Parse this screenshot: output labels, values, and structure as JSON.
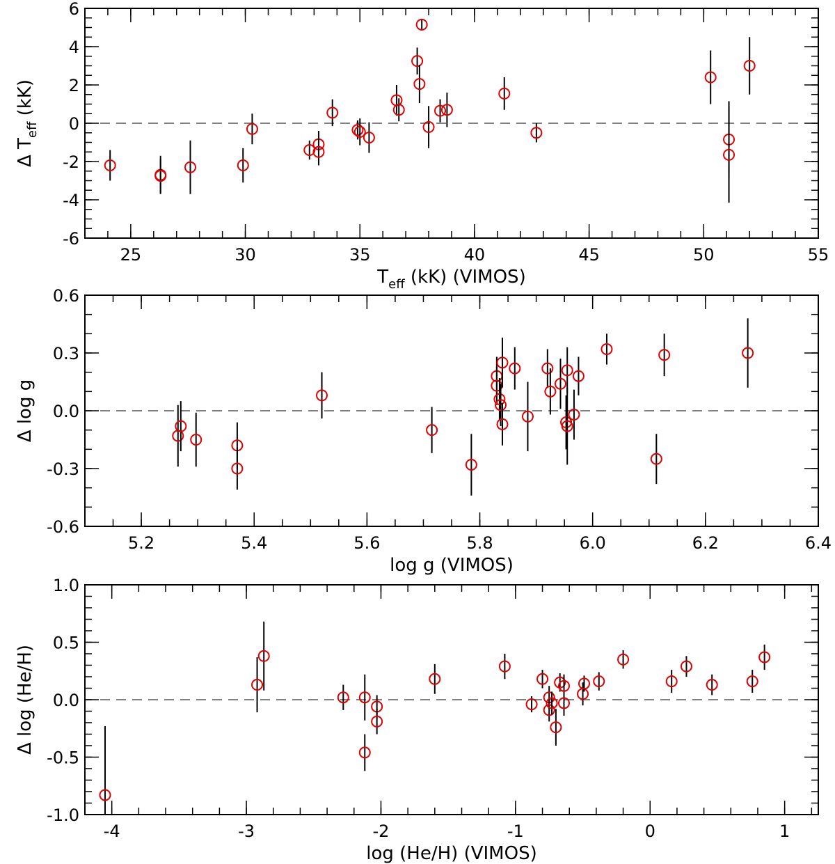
{
  "chart_data": [
    {
      "type": "scatter",
      "name": "teff",
      "xlabel": {
        "main": "T",
        "sub": "eff",
        "rest": " (kK) (VIMOS)"
      },
      "ylabel": {
        "main": "Δ T",
        "sub": "eff",
        "rest": " (kK)"
      },
      "xlim": [
        23,
        55
      ],
      "ylim": [
        -6,
        6
      ],
      "xticks": [
        25,
        30,
        35,
        40,
        45,
        50,
        55
      ],
      "yticks": [
        -6,
        -4,
        -2,
        0,
        2,
        4,
        6
      ],
      "xtick_labels": [
        "25",
        "30",
        "35",
        "40",
        "45",
        "50",
        "55"
      ],
      "ytick_labels": [
        "-6",
        "-4",
        "-2",
        "0",
        "2",
        "4",
        "6"
      ],
      "xminor": 1,
      "yminor": 0.5,
      "zero_line": true,
      "marker_color": "#e00000",
      "points": [
        {
          "x": 24.1,
          "y": -2.2,
          "err": 0.8
        },
        {
          "x": 26.3,
          "y": -2.7,
          "err": 1.0
        },
        {
          "x": 26.3,
          "y": -2.75,
          "err": 0.9
        },
        {
          "x": 27.6,
          "y": -2.3,
          "err": 1.4
        },
        {
          "x": 29.9,
          "y": -2.2,
          "err": 0.9
        },
        {
          "x": 30.3,
          "y": -0.3,
          "err": 0.8
        },
        {
          "x": 32.8,
          "y": -1.4,
          "err": 0.5
        },
        {
          "x": 33.2,
          "y": -1.1,
          "err": 0.7
        },
        {
          "x": 33.2,
          "y": -1.5,
          "err": 0.7
        },
        {
          "x": 33.8,
          "y": 0.55,
          "err": 0.7
        },
        {
          "x": 34.9,
          "y": -0.35,
          "err": 0.5
        },
        {
          "x": 35.0,
          "y": -0.45,
          "err": 0.7
        },
        {
          "x": 35.4,
          "y": -0.75,
          "err": 0.8
        },
        {
          "x": 36.6,
          "y": 1.2,
          "err": 0.8
        },
        {
          "x": 36.7,
          "y": 0.7,
          "err": 0.6
        },
        {
          "x": 37.5,
          "y": 3.25,
          "err": 0.7
        },
        {
          "x": 37.6,
          "y": 2.05,
          "err": 1.0
        },
        {
          "x": 37.7,
          "y": 5.15,
          "err": 0.3
        },
        {
          "x": 38.0,
          "y": -0.2,
          "err": 1.1
        },
        {
          "x": 38.5,
          "y": 0.65,
          "err": 0.6
        },
        {
          "x": 38.8,
          "y": 0.7,
          "err": 0.9
        },
        {
          "x": 41.3,
          "y": 1.55,
          "err": 0.85
        },
        {
          "x": 42.7,
          "y": -0.5,
          "err": 0.5
        },
        {
          "x": 50.3,
          "y": 2.4,
          "err": 1.4
        },
        {
          "x": 51.1,
          "y": -0.85,
          "err": 2.0
        },
        {
          "x": 51.1,
          "y": -1.65,
          "err": 2.5
        },
        {
          "x": 52.0,
          "y": 3.0,
          "err": 1.5
        }
      ]
    },
    {
      "type": "scatter",
      "name": "logg",
      "xlabel": {
        "main": "log g (VIMOS)",
        "sub": "",
        "rest": ""
      },
      "ylabel": {
        "main": "Δ log g",
        "sub": "",
        "rest": ""
      },
      "xlim": [
        5.1,
        6.4
      ],
      "ylim": [
        -0.6,
        0.6
      ],
      "xticks": [
        5.2,
        5.4,
        5.6,
        5.8,
        6.0,
        6.2,
        6.4
      ],
      "yticks": [
        -0.6,
        -0.3,
        0.0,
        0.3,
        0.6
      ],
      "xtick_labels": [
        "5.2",
        "5.4",
        "5.6",
        "5.8",
        "6.0",
        "6.2",
        "6.4"
      ],
      "ytick_labels": [
        "-0.6",
        "-0.3",
        "0.0",
        "0.3",
        "0.6"
      ],
      "xminor": 0.05,
      "yminor": 0.1,
      "zero_line": true,
      "marker_color": "#e00000",
      "points": [
        {
          "x": 5.265,
          "y": -0.13,
          "err": 0.16
        },
        {
          "x": 5.27,
          "y": -0.08,
          "err": 0.13
        },
        {
          "x": 5.297,
          "y": -0.15,
          "err": 0.14
        },
        {
          "x": 5.37,
          "y": -0.18,
          "err": 0.12
        },
        {
          "x": 5.37,
          "y": -0.3,
          "err": 0.11
        },
        {
          "x": 5.52,
          "y": 0.08,
          "err": 0.12
        },
        {
          "x": 5.715,
          "y": -0.1,
          "err": 0.12
        },
        {
          "x": 5.785,
          "y": -0.28,
          "err": 0.16
        },
        {
          "x": 5.83,
          "y": 0.18,
          "err": 0.1
        },
        {
          "x": 5.83,
          "y": 0.13,
          "err": 0.1
        },
        {
          "x": 5.835,
          "y": 0.06,
          "err": 0.11
        },
        {
          "x": 5.837,
          "y": 0.03,
          "err": 0.11
        },
        {
          "x": 5.84,
          "y": -0.07,
          "err": 0.11
        },
        {
          "x": 5.84,
          "y": 0.25,
          "err": 0.13
        },
        {
          "x": 5.862,
          "y": 0.22,
          "err": 0.11
        },
        {
          "x": 5.885,
          "y": -0.03,
          "err": 0.18
        },
        {
          "x": 5.92,
          "y": 0.22,
          "err": 0.1
        },
        {
          "x": 5.925,
          "y": 0.1,
          "err": 0.12
        },
        {
          "x": 5.943,
          "y": 0.14,
          "err": 0.13
        },
        {
          "x": 5.953,
          "y": -0.06,
          "err": 0.14
        },
        {
          "x": 5.955,
          "y": -0.08,
          "err": 0.2
        },
        {
          "x": 5.955,
          "y": 0.21,
          "err": 0.12
        },
        {
          "x": 5.967,
          "y": -0.02,
          "err": 0.13
        },
        {
          "x": 5.975,
          "y": 0.18,
          "err": 0.1
        },
        {
          "x": 6.025,
          "y": 0.32,
          "err": 0.08
        },
        {
          "x": 6.113,
          "y": -0.25,
          "err": 0.13
        },
        {
          "x": 6.127,
          "y": 0.29,
          "err": 0.11
        },
        {
          "x": 6.275,
          "y": 0.3,
          "err": 0.18
        }
      ]
    },
    {
      "type": "scatter",
      "name": "hehe",
      "xlabel": {
        "main": "log (He/H) (VIMOS)",
        "sub": "",
        "rest": ""
      },
      "ylabel": {
        "main": "Δ log (He/H)",
        "sub": "",
        "rest": ""
      },
      "xlim": [
        -4.2,
        1.25
      ],
      "ylim": [
        -1.0,
        1.0
      ],
      "xticks": [
        -4,
        -3,
        -2,
        -1,
        0,
        1
      ],
      "yticks": [
        -1.0,
        -0.5,
        0.0,
        0.5,
        1.0
      ],
      "xtick_labels": [
        "-4",
        "-3",
        "-2",
        "-1",
        "0",
        "1"
      ],
      "ytick_labels": [
        "-1.0",
        "-0.5",
        "0.0",
        "0.5",
        "1.0"
      ],
      "xminor": 0.2,
      "yminor": 0.1,
      "zero_line": true,
      "marker_color": "#e00000",
      "points": [
        {
          "x": -4.05,
          "y": -0.83,
          "err": 0.6
        },
        {
          "x": -2.92,
          "y": 0.13,
          "err": 0.24
        },
        {
          "x": -2.87,
          "y": 0.38,
          "err": 0.3
        },
        {
          "x": -2.28,
          "y": 0.02,
          "err": 0.11
        },
        {
          "x": -2.12,
          "y": 0.02,
          "err": 0.2
        },
        {
          "x": -2.12,
          "y": -0.46,
          "err": 0.16
        },
        {
          "x": -2.03,
          "y": -0.06,
          "err": 0.1
        },
        {
          "x": -2.03,
          "y": -0.19,
          "err": 0.11
        },
        {
          "x": -1.6,
          "y": 0.18,
          "err": 0.13
        },
        {
          "x": -1.08,
          "y": 0.29,
          "err": 0.11
        },
        {
          "x": -0.88,
          "y": -0.04,
          "err": 0.07
        },
        {
          "x": -0.8,
          "y": 0.18,
          "err": 0.08
        },
        {
          "x": -0.75,
          "y": 0.02,
          "err": 0.1
        },
        {
          "x": -0.75,
          "y": -0.09,
          "err": 0.1
        },
        {
          "x": -0.73,
          "y": -0.03,
          "err": 0.1
        },
        {
          "x": -0.7,
          "y": -0.24,
          "err": 0.16
        },
        {
          "x": -0.67,
          "y": 0.15,
          "err": 0.08
        },
        {
          "x": -0.64,
          "y": -0.03,
          "err": 0.11
        },
        {
          "x": -0.64,
          "y": 0.12,
          "err": 0.1
        },
        {
          "x": -0.5,
          "y": 0.05,
          "err": 0.1
        },
        {
          "x": -0.49,
          "y": 0.14,
          "err": 0.07
        },
        {
          "x": -0.38,
          "y": 0.16,
          "err": 0.08
        },
        {
          "x": -0.2,
          "y": 0.35,
          "err": 0.08
        },
        {
          "x": 0.16,
          "y": 0.16,
          "err": 0.1
        },
        {
          "x": 0.27,
          "y": 0.29,
          "err": 0.09
        },
        {
          "x": 0.46,
          "y": 0.13,
          "err": 0.09
        },
        {
          "x": 0.76,
          "y": 0.16,
          "err": 0.1
        },
        {
          "x": 0.85,
          "y": 0.37,
          "err": 0.11
        }
      ]
    }
  ]
}
